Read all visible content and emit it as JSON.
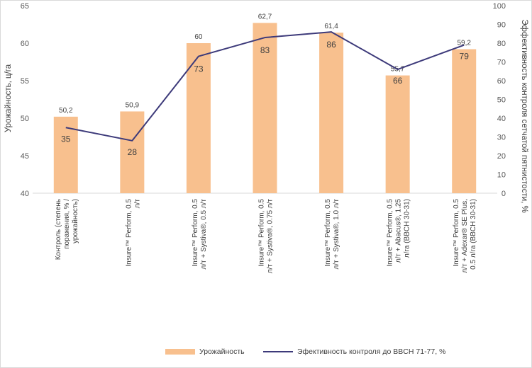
{
  "chart_data": {
    "type": "bar+line",
    "title": "",
    "categories": [
      [
        "Контроль (степень",
        "поражения, % /",
        "урожайность)"
      ],
      [
        "Insure™ Perform, 0.5",
        "л/т"
      ],
      [
        "Insure™ Perform, 0.5",
        "л/т + Systiva®, 0.5 л/т"
      ],
      [
        "Insure™ Perform, 0.5",
        "л/т + Systiva®, 0.75 л/т"
      ],
      [
        "Insure™ Perform, 0.5",
        "л/т + Systiva®, 1.0 л/т"
      ],
      [
        "Insure™ Perform, 0.5",
        "л/т + Abacus®, 1.25",
        "л/га (BBCH 30-31)"
      ],
      [
        "Insure™ Perform, 0.5",
        "л/т + Adexar® SE Plus,",
        "0.5 л/га (BBCH 30-31)"
      ]
    ],
    "series": [
      {
        "name": "Урожайность",
        "type": "bar",
        "axis": "left",
        "color": "#f8c08e",
        "values": [
          50.2,
          50.9,
          60,
          62.7,
          61.4,
          55.7,
          59.2
        ],
        "labels": [
          "50,2",
          "50,9",
          "60",
          "62,7",
          "61,4",
          "55,7",
          "59,2"
        ]
      },
      {
        "name": "Эфективность контроля до BBCH 71-77, %",
        "type": "line",
        "axis": "right",
        "color": "#3d3a7a",
        "values": [
          35,
          28,
          73,
          83,
          86,
          66,
          79
        ],
        "labels": [
          "35",
          "28",
          "73",
          "83",
          "86",
          "66",
          "79"
        ]
      }
    ],
    "y_left": {
      "label": "Урожайность, ц/га",
      "min": 40,
      "max": 65,
      "ticks": [
        "40",
        "45",
        "50",
        "55",
        "60",
        "65"
      ]
    },
    "y_right": {
      "label": "Эффективность контроля сетчатой пятнистости, %",
      "min": 0,
      "max": 100,
      "ticks": [
        "0",
        "10",
        "20",
        "30",
        "40",
        "50",
        "60",
        "70",
        "80",
        "90",
        "100"
      ]
    },
    "legend_position": "bottom"
  }
}
